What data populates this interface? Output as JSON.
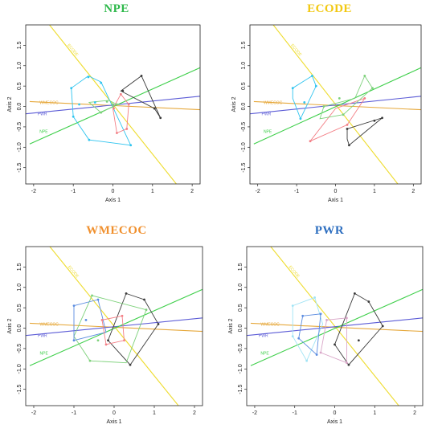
{
  "figure": {
    "panels": [
      {
        "title": "NPE",
        "title_color": "#2db84a",
        "xlabel": "Axis 1",
        "ylabel": "Axis 2"
      },
      {
        "title": "ECODE",
        "title_color": "#f2c811",
        "xlabel": "Axis 1",
        "ylabel": "Axis 2"
      },
      {
        "title": "WMECOC",
        "title_color": "#f0902e",
        "xlabel": "Axis 1",
        "ylabel": "Axis 2"
      },
      {
        "title": "PWR",
        "title_color": "#2e6fc0",
        "xlabel": "Axis 1",
        "ylabel": "Axis 2"
      }
    ]
  },
  "chart_data": [
    {
      "type": "scatter",
      "title": "NPE",
      "xlabel": "Axis 1",
      "ylabel": "Axis 2",
      "xlim": [
        -2.2,
        2.2
      ],
      "ylim": [
        -1.9,
        2.0
      ],
      "xticks": [
        -2,
        -1,
        0,
        1,
        2
      ],
      "yticks": [
        -1.5,
        -1.0,
        -0.5,
        0.0,
        0.5,
        1.0,
        1.5
      ],
      "ytick_labels": [
        "-1.5",
        "-1.0",
        "-0.5",
        "0.0",
        "0.5",
        "1.0",
        "1.5"
      ],
      "biplot_vectors": [
        {
          "label": "ECODE",
          "color": "#eedc2e",
          "from": [
            -1.6,
            2.0
          ],
          "to": [
            1.6,
            -1.9
          ]
        },
        {
          "label": "WMECOC",
          "color": "#e6a83b",
          "from": [
            -2.1,
            0.12
          ],
          "to": [
            2.2,
            -0.08
          ]
        },
        {
          "label": "PWR",
          "color": "#5b5bd6",
          "from": [
            -2.2,
            -0.18
          ],
          "to": [
            2.2,
            0.25
          ]
        },
        {
          "label": "NPE",
          "color": "#3ecf4a",
          "from": [
            -2.1,
            -0.92
          ],
          "to": [
            2.2,
            0.95
          ]
        }
      ],
      "hulls": [
        {
          "color": "#2ec4ef",
          "points": [
            [
              -1.05,
              0.45
            ],
            [
              -0.62,
              0.75
            ],
            [
              -0.3,
              0.6
            ],
            [
              0.45,
              -0.95
            ],
            [
              -0.6,
              -0.82
            ],
            [
              -1.0,
              -0.25
            ]
          ]
        },
        {
          "color": "#f37f86",
          "points": [
            [
              0.2,
              0.3
            ],
            [
              0.4,
              0.05
            ],
            [
              0.35,
              -0.55
            ],
            [
              0.1,
              -0.65
            ],
            [
              0.0,
              -0.05
            ]
          ]
        },
        {
          "color": "#3a3a3a",
          "points": [
            [
              0.2,
              0.38
            ],
            [
              0.72,
              0.75
            ],
            [
              1.2,
              -0.28
            ],
            [
              1.05,
              -0.05
            ]
          ]
        },
        {
          "color": "#7dd17a",
          "points": [
            [
              -0.6,
              0.1
            ],
            [
              -0.1,
              0.15
            ],
            [
              0.1,
              0.05
            ],
            [
              -0.3,
              -0.15
            ]
          ]
        }
      ],
      "points": [
        {
          "x": -0.62,
          "y": 0.72,
          "group": 0
        },
        {
          "x": -1.05,
          "y": 0.45,
          "group": 0
        },
        {
          "x": -1.0,
          "y": -0.25,
          "group": 0
        },
        {
          "x": -0.6,
          "y": -0.82,
          "group": 0
        },
        {
          "x": 0.45,
          "y": -0.95,
          "group": 0
        },
        {
          "x": -0.3,
          "y": 0.58,
          "group": 0
        },
        {
          "x": -0.85,
          "y": 0.05,
          "group": 0
        },
        {
          "x": -0.45,
          "y": 0.1,
          "group": 0
        },
        {
          "x": 0.2,
          "y": 0.3,
          "group": 1
        },
        {
          "x": 0.4,
          "y": 0.05,
          "group": 1
        },
        {
          "x": 0.35,
          "y": -0.55,
          "group": 1
        },
        {
          "x": 0.1,
          "y": -0.65,
          "group": 1
        },
        {
          "x": 0.02,
          "y": -0.05,
          "group": 1
        },
        {
          "x": 0.72,
          "y": 0.75,
          "group": 2
        },
        {
          "x": 1.2,
          "y": -0.28,
          "group": 2
        },
        {
          "x": 1.05,
          "y": -0.05,
          "group": 2
        },
        {
          "x": 0.25,
          "y": 0.38,
          "group": 2
        },
        {
          "x": -0.15,
          "y": 0.12,
          "group": 3
        },
        {
          "x": 0.0,
          "y": 0.05,
          "group": 3
        },
        {
          "x": -0.3,
          "y": -0.15,
          "group": 3
        },
        {
          "x": 0.1,
          "y": 0.05,
          "group": 3
        }
      ]
    },
    {
      "type": "scatter",
      "title": "ECODE",
      "xlabel": "Axis 1",
      "ylabel": "Axis 2",
      "xlim": [
        -2.2,
        2.2
      ],
      "ylim": [
        -1.9,
        2.0
      ],
      "xticks": [
        -2,
        -1,
        0,
        1,
        2
      ],
      "yticks": [
        -1.5,
        -1.0,
        -0.5,
        0.0,
        0.5,
        1.0,
        1.5
      ],
      "ytick_labels": [
        "-1.5",
        "-1.0",
        "-0.5",
        "0.0",
        "0.5",
        "1.0",
        "1.5"
      ],
      "biplot_vectors": [
        {
          "label": "ECODE",
          "color": "#eedc2e",
          "from": [
            -1.6,
            2.0
          ],
          "to": [
            1.6,
            -1.9
          ]
        },
        {
          "label": "WMECOC",
          "color": "#e6a83b",
          "from": [
            -2.1,
            0.12
          ],
          "to": [
            2.2,
            -0.08
          ]
        },
        {
          "label": "PWR",
          "color": "#5b5bd6",
          "from": [
            -2.2,
            -0.18
          ],
          "to": [
            2.2,
            0.25
          ]
        },
        {
          "label": "NPE",
          "color": "#3ecf4a",
          "from": [
            -2.1,
            -0.92
          ],
          "to": [
            2.2,
            0.95
          ]
        }
      ],
      "hulls": [
        {
          "color": "#2ec4ef",
          "points": [
            [
              -1.1,
              0.45
            ],
            [
              -0.6,
              0.75
            ],
            [
              -0.5,
              0.5
            ],
            [
              -0.9,
              -0.3
            ],
            [
              -1.1,
              0.2
            ]
          ]
        },
        {
          "color": "#3a3a3a",
          "points": [
            [
              0.3,
              -0.55
            ],
            [
              1.2,
              -0.28
            ],
            [
              0.35,
              -0.95
            ],
            [
              0.3,
              -0.8
            ]
          ]
        },
        {
          "color": "#f37f86",
          "points": [
            [
              -0.65,
              -0.85
            ],
            [
              0.0,
              -0.05
            ],
            [
              0.75,
              0.2
            ],
            [
              0.3,
              -0.45
            ]
          ]
        },
        {
          "color": "#7dd17a",
          "points": [
            [
              -0.3,
              0.0
            ],
            [
              0.5,
              0.2
            ],
            [
              0.75,
              0.75
            ],
            [
              0.95,
              0.45
            ],
            [
              0.2,
              -0.2
            ],
            [
              -0.4,
              -0.3
            ]
          ]
        }
      ],
      "points": [
        {
          "x": -1.1,
          "y": 0.45,
          "group": 0
        },
        {
          "x": -0.6,
          "y": 0.75,
          "group": 0
        },
        {
          "x": -0.9,
          "y": -0.3,
          "group": 0
        },
        {
          "x": -0.5,
          "y": 0.5,
          "group": 0
        },
        {
          "x": -0.8,
          "y": 0.1,
          "group": 0
        },
        {
          "x": 0.3,
          "y": -0.55,
          "group": 1
        },
        {
          "x": 1.2,
          "y": -0.28,
          "group": 1
        },
        {
          "x": 0.35,
          "y": -0.95,
          "group": 1
        },
        {
          "x": 1.0,
          "y": -0.35,
          "group": 1
        },
        {
          "x": -0.65,
          "y": -0.85,
          "group": 2
        },
        {
          "x": 0.75,
          "y": 0.2,
          "group": 2
        },
        {
          "x": 0.3,
          "y": -0.45,
          "group": 2
        },
        {
          "x": 0.75,
          "y": 0.75,
          "group": 3
        },
        {
          "x": 0.95,
          "y": 0.45,
          "group": 3
        },
        {
          "x": 0.2,
          "y": -0.2,
          "group": 3
        },
        {
          "x": -0.3,
          "y": 0.0,
          "group": 3
        },
        {
          "x": 0.1,
          "y": 0.2,
          "group": 3
        }
      ]
    },
    {
      "type": "scatter",
      "title": "WMECOC",
      "xlabel": "Axis 1",
      "ylabel": "Axis 2",
      "xlim": [
        -2.2,
        2.2
      ],
      "ylim": [
        -1.9,
        2.0
      ],
      "xticks": [
        -2,
        -1,
        0,
        1,
        2
      ],
      "yticks": [
        -1.5,
        -1.0,
        -0.5,
        0.0,
        0.5,
        1.0,
        1.5
      ],
      "ytick_labels": [
        "-1.5",
        "-1.0",
        "-0.5",
        "0.0",
        "0.5",
        "1.0",
        "1.5"
      ],
      "biplot_vectors": [
        {
          "label": "ECODE",
          "color": "#eedc2e",
          "from": [
            -1.6,
            2.0
          ],
          "to": [
            1.6,
            -1.9
          ]
        },
        {
          "label": "WMECOC",
          "color": "#e6a83b",
          "from": [
            -2.1,
            0.12
          ],
          "to": [
            2.2,
            -0.08
          ]
        },
        {
          "label": "PWR",
          "color": "#5b5bd6",
          "from": [
            -2.2,
            -0.18
          ],
          "to": [
            2.2,
            0.25
          ]
        },
        {
          "label": "NPE",
          "color": "#3ecf4a",
          "from": [
            -2.1,
            -0.92
          ],
          "to": [
            2.2,
            0.95
          ]
        }
      ],
      "hulls": [
        {
          "color": "#3a3a3a",
          "points": [
            [
              0.3,
              0.85
            ],
            [
              0.75,
              0.7
            ],
            [
              1.1,
              0.1
            ],
            [
              0.4,
              -0.9
            ],
            [
              -0.15,
              -0.3
            ]
          ]
        },
        {
          "color": "#7dd17a",
          "points": [
            [
              -0.55,
              0.8
            ],
            [
              0.8,
              0.45
            ],
            [
              0.3,
              -0.85
            ],
            [
              -0.6,
              -0.8
            ],
            [
              -1.0,
              -0.2
            ]
          ]
        },
        {
          "color": "#5b8ce0",
          "points": [
            [
              -1.0,
              0.55
            ],
            [
              -0.4,
              0.7
            ],
            [
              -0.2,
              -0.1
            ],
            [
              -1.0,
              -0.3
            ]
          ]
        },
        {
          "color": "#f37f86",
          "points": [
            [
              -0.3,
              0.2
            ],
            [
              0.2,
              0.3
            ],
            [
              0.25,
              -0.3
            ],
            [
              -0.2,
              -0.4
            ]
          ]
        }
      ],
      "points": [
        {
          "x": 0.3,
          "y": 0.85,
          "group": 0
        },
        {
          "x": 0.75,
          "y": 0.7,
          "group": 0
        },
        {
          "x": 1.1,
          "y": 0.1,
          "group": 0
        },
        {
          "x": 0.4,
          "y": -0.9,
          "group": 0
        },
        {
          "x": -0.15,
          "y": -0.3,
          "group": 0
        },
        {
          "x": -0.55,
          "y": 0.8,
          "group": 1
        },
        {
          "x": 0.8,
          "y": 0.45,
          "group": 1
        },
        {
          "x": -0.6,
          "y": -0.8,
          "group": 1
        },
        {
          "x": -0.4,
          "y": -0.3,
          "group": 1
        },
        {
          "x": -1.0,
          "y": 0.55,
          "group": 2
        },
        {
          "x": -0.4,
          "y": 0.7,
          "group": 2
        },
        {
          "x": -1.0,
          "y": -0.3,
          "group": 2
        },
        {
          "x": -0.7,
          "y": 0.2,
          "group": 2
        },
        {
          "x": -0.3,
          "y": 0.2,
          "group": 3
        },
        {
          "x": 0.2,
          "y": 0.3,
          "group": 3
        },
        {
          "x": 0.25,
          "y": -0.3,
          "group": 3
        },
        {
          "x": -0.2,
          "y": -0.4,
          "group": 3
        }
      ]
    },
    {
      "type": "scatter",
      "title": "PWR",
      "xlabel": "Axis 1",
      "ylabel": "Axis 2",
      "xlim": [
        -2.2,
        2.2
      ],
      "ylim": [
        -1.9,
        2.0
      ],
      "xticks": [
        -2,
        -1,
        0,
        1,
        2
      ],
      "yticks": [
        -1.5,
        -1.0,
        -0.5,
        0.0,
        0.5,
        1.0,
        1.5
      ],
      "ytick_labels": [
        "-1.5",
        "-1.0",
        "-0.5",
        "0.0",
        "0.5",
        "1.0",
        "1.5"
      ],
      "biplot_vectors": [
        {
          "label": "ECODE",
          "color": "#eedc2e",
          "from": [
            -1.6,
            2.0
          ],
          "to": [
            1.6,
            -1.9
          ]
        },
        {
          "label": "WMECOC",
          "color": "#e6a83b",
          "from": [
            -2.1,
            0.12
          ],
          "to": [
            2.2,
            -0.08
          ]
        },
        {
          "label": "PWR",
          "color": "#5b5bd6",
          "from": [
            -2.2,
            -0.18
          ],
          "to": [
            2.2,
            0.25
          ]
        },
        {
          "label": "NPE",
          "color": "#3ecf4a",
          "from": [
            -2.1,
            -0.92
          ],
          "to": [
            2.2,
            0.95
          ]
        }
      ],
      "hulls": [
        {
          "color": "#3a3a3a",
          "points": [
            [
              0.5,
              0.85
            ],
            [
              0.85,
              0.65
            ],
            [
              1.2,
              0.05
            ],
            [
              0.35,
              -0.9
            ],
            [
              0.0,
              -0.4
            ]
          ]
        },
        {
          "color": "#9fe3f5",
          "points": [
            [
              -1.05,
              0.55
            ],
            [
              -0.5,
              0.75
            ],
            [
              -0.3,
              0.1
            ],
            [
              -0.7,
              -0.8
            ],
            [
              -1.05,
              -0.2
            ]
          ]
        },
        {
          "color": "#5b8ce0",
          "points": [
            [
              -0.8,
              0.3
            ],
            [
              -0.35,
              0.35
            ],
            [
              -0.45,
              -0.65
            ],
            [
              -0.9,
              -0.25
            ]
          ]
        },
        {
          "color": "#d9a6c8",
          "points": [
            [
              -0.2,
              0.2
            ],
            [
              0.3,
              0.25
            ],
            [
              0.3,
              -0.85
            ],
            [
              -0.35,
              -0.6
            ]
          ]
        }
      ],
      "points": [
        {
          "x": 0.5,
          "y": 0.85,
          "group": 0
        },
        {
          "x": 0.85,
          "y": 0.65,
          "group": 0
        },
        {
          "x": 1.2,
          "y": 0.05,
          "group": 0
        },
        {
          "x": 0.35,
          "y": -0.9,
          "group": 0
        },
        {
          "x": 0.0,
          "y": -0.4,
          "group": 0
        },
        {
          "x": 0.6,
          "y": -0.3,
          "group": 0
        },
        {
          "x": -1.05,
          "y": 0.55,
          "group": 1
        },
        {
          "x": -0.5,
          "y": 0.75,
          "group": 1
        },
        {
          "x": -0.7,
          "y": -0.8,
          "group": 1
        },
        {
          "x": -1.05,
          "y": -0.2,
          "group": 1
        },
        {
          "x": -0.8,
          "y": 0.3,
          "group": 2
        },
        {
          "x": -0.35,
          "y": 0.35,
          "group": 2
        },
        {
          "x": -0.45,
          "y": -0.65,
          "group": 2
        },
        {
          "x": -0.9,
          "y": -0.25,
          "group": 2
        },
        {
          "x": -0.2,
          "y": 0.2,
          "group": 3
        },
        {
          "x": 0.3,
          "y": 0.25,
          "group": 3
        },
        {
          "x": 0.3,
          "y": -0.85,
          "group": 3
        },
        {
          "x": -0.35,
          "y": -0.6,
          "group": 3
        }
      ]
    }
  ]
}
